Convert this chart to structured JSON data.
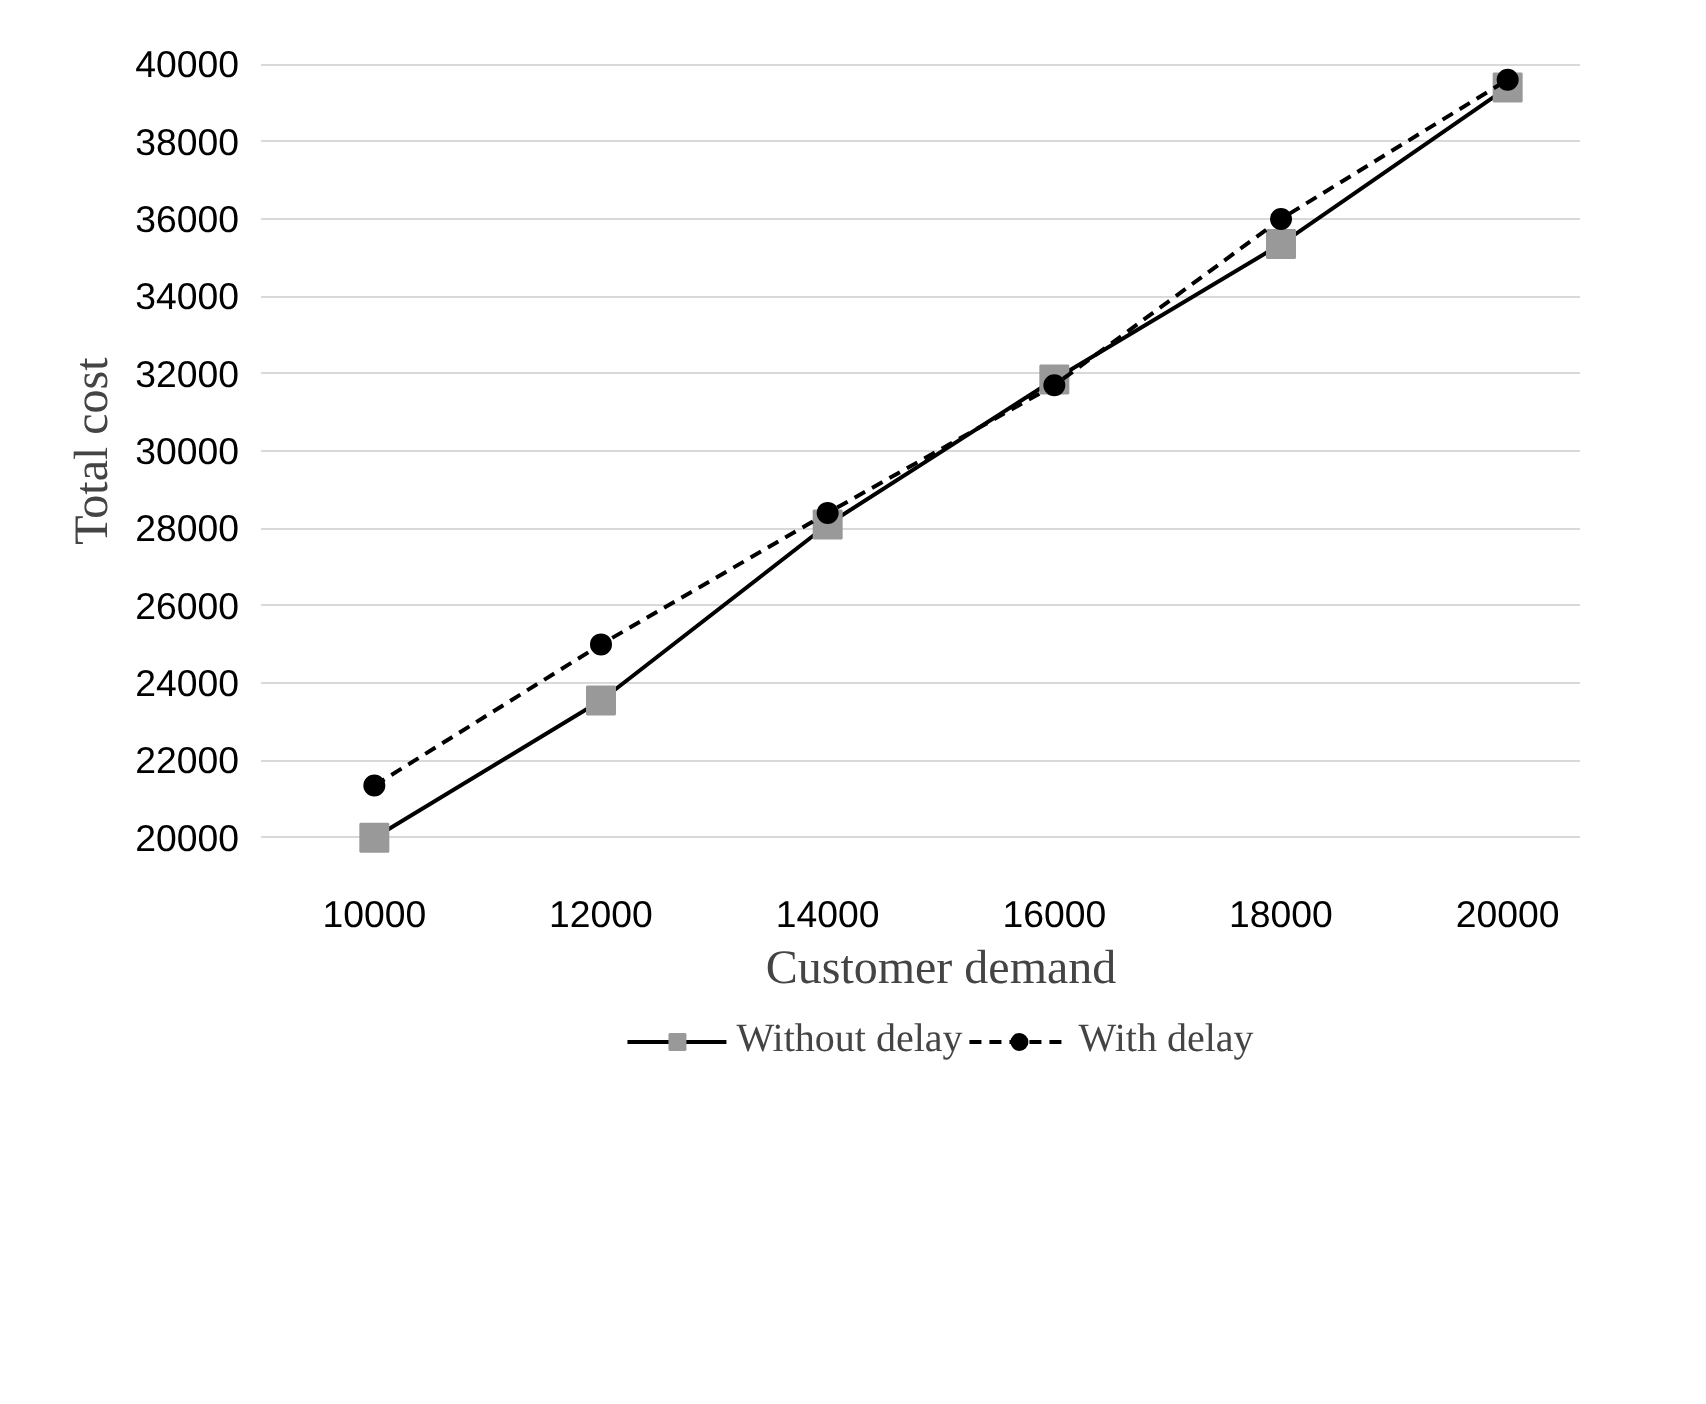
{
  "chart_data": {
    "type": "line",
    "xlabel": "Customer demand",
    "ylabel": "Total cost",
    "categories": [
      "10000",
      "12000",
      "14000",
      "16000",
      "18000",
      "20000"
    ],
    "series": [
      {
        "name": "Without delay",
        "color": "#000000",
        "colors": [
          "#999999",
          "#999999",
          "#999999",
          "#999999",
          "#999999",
          "#999999"
        ],
        "marker": "square",
        "line_style": "solid",
        "values": [
          20000,
          23550,
          28100,
          31850,
          35350,
          39400
        ]
      },
      {
        "name": "With delay",
        "color": "#000000",
        "marker": "circle",
        "line_style": "dashed",
        "values": [
          21350,
          25000,
          28400,
          31700,
          36000,
          39600
        ]
      }
    ],
    "ylim": [
      20000,
      40000
    ],
    "yticks": [
      20000,
      22000,
      24000,
      26000,
      28000,
      30000,
      32000,
      34000,
      36000,
      38000,
      40000
    ],
    "grid": "y",
    "legend": "bottom"
  }
}
